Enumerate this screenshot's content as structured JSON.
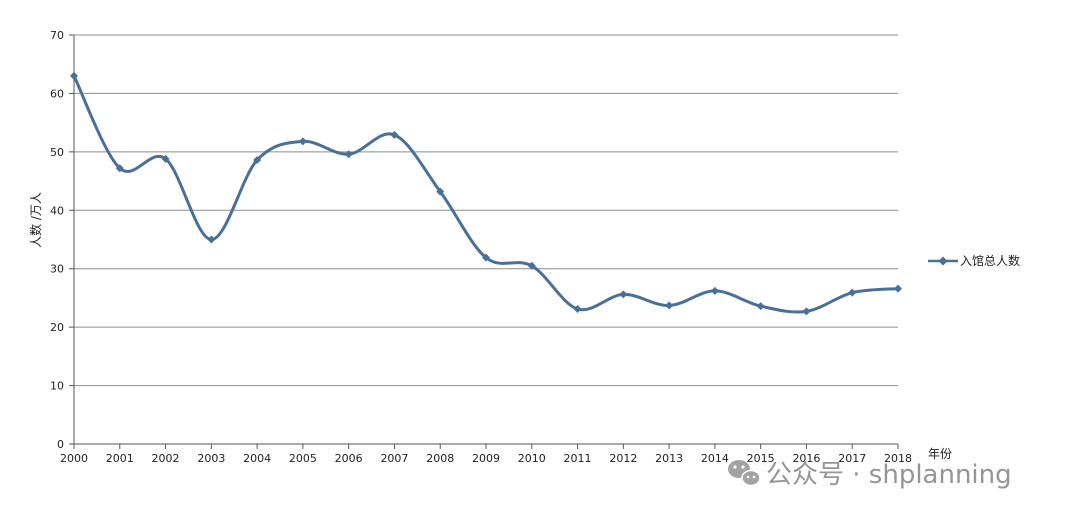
{
  "chart_data": {
    "type": "line",
    "title": "",
    "xlabel": "年份",
    "ylabel": "人数 /万人",
    "ylim": [
      0,
      70
    ],
    "yticks": [
      0,
      10,
      20,
      30,
      40,
      50,
      60,
      70
    ],
    "grid": true,
    "legend_position": "right",
    "categories": [
      "2000",
      "2001",
      "2002",
      "2003",
      "2004",
      "2005",
      "2006",
      "2007",
      "2008",
      "2009",
      "2010",
      "2011",
      "2012",
      "2013",
      "2014",
      "2015",
      "2016",
      "2017",
      "2018"
    ],
    "series": [
      {
        "name": "入馆总人数",
        "color": "#4a6f98",
        "values": [
          63,
          47.2,
          48.8,
          35,
          48.6,
          51.8,
          49.6,
          52.9,
          43.2,
          31.9,
          30.5,
          23.1,
          25.6,
          23.7,
          26.2,
          23.6,
          22.7,
          25.9,
          26.6
        ]
      }
    ]
  },
  "watermark": {
    "icon": "wechat-icon",
    "text": "公众号 · shplanning"
  }
}
